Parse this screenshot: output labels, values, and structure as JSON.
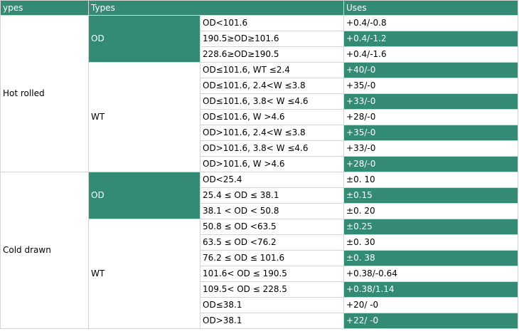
{
  "colors": {
    "accent": "#338a75",
    "border": "#d4d4d4"
  },
  "header": {
    "col1": "ypes",
    "col2": "Types",
    "col3": "",
    "col4": "Uses"
  },
  "groups": [
    {
      "name": "Hot    rolled",
      "subgroups": [
        {
          "name": "OD",
          "rows": [
            {
              "condition": "OD<101.6",
              "tolerance": "+0.4/-0.8"
            },
            {
              "condition": "190.5≥OD≥101.6",
              "tolerance": "+0.4/-1.2"
            },
            {
              "condition": "228.6≥OD≥190.5",
              "tolerance": "+0.4/-1.6"
            }
          ]
        },
        {
          "name": "WT",
          "rows": [
            {
              "condition": "OD≤101.6, WT ≤2.4",
              "tolerance": "+40/-0"
            },
            {
              "condition": "OD≤101.6, 2.4<W ≤3.8",
              "tolerance": "+35/-0"
            },
            {
              "condition": "OD≤101.6, 3.8< W ≤4.6",
              "tolerance": "+33/-0"
            },
            {
              "condition": "OD≤101.6,    W >4.6",
              "tolerance": "+28/-0"
            },
            {
              "condition": "OD>101.6,    2.4<W ≤3.8",
              "tolerance": "+35/-0"
            },
            {
              "condition": "OD>101.6, 3.8< W ≤4.6",
              "tolerance": "+33/-0"
            },
            {
              "condition": "OD>101.6, W >4.6",
              "tolerance": "+28/-0"
            }
          ]
        }
      ]
    },
    {
      "name": "Cold drawn",
      "subgroups": [
        {
          "name": "OD",
          "rows": [
            {
              "condition": "OD<25.4",
              "tolerance": "±0. 10"
            },
            {
              "condition": "25.4 ≤ OD ≤ 38.1",
              "tolerance": "±0.15"
            },
            {
              "condition": "38.1 < OD < 50.8",
              "tolerance": "±0. 20"
            }
          ]
        },
        {
          "name": "WT",
          "rows": [
            {
              "condition": "50.8 ≤ OD <63.5",
              "tolerance": "±0.25"
            },
            {
              "condition": "63.5 ≤ OD <76.2",
              "tolerance": "±0. 30"
            },
            {
              "condition": "76.2 ≤ OD ≤ 101.6",
              "tolerance": "±0. 38"
            },
            {
              "condition": "101.6< OD ≤ 190.5",
              "tolerance": "+0.38/-0.64"
            },
            {
              "condition": "109.5< OD ≤ 228.5",
              "tolerance": "+0.38/1.14"
            },
            {
              "condition": "OD≤38.1",
              "tolerance": "+20/ -0"
            },
            {
              "condition": "OD>38.1",
              "tolerance": "+22/ -0"
            }
          ]
        }
      ]
    }
  ]
}
